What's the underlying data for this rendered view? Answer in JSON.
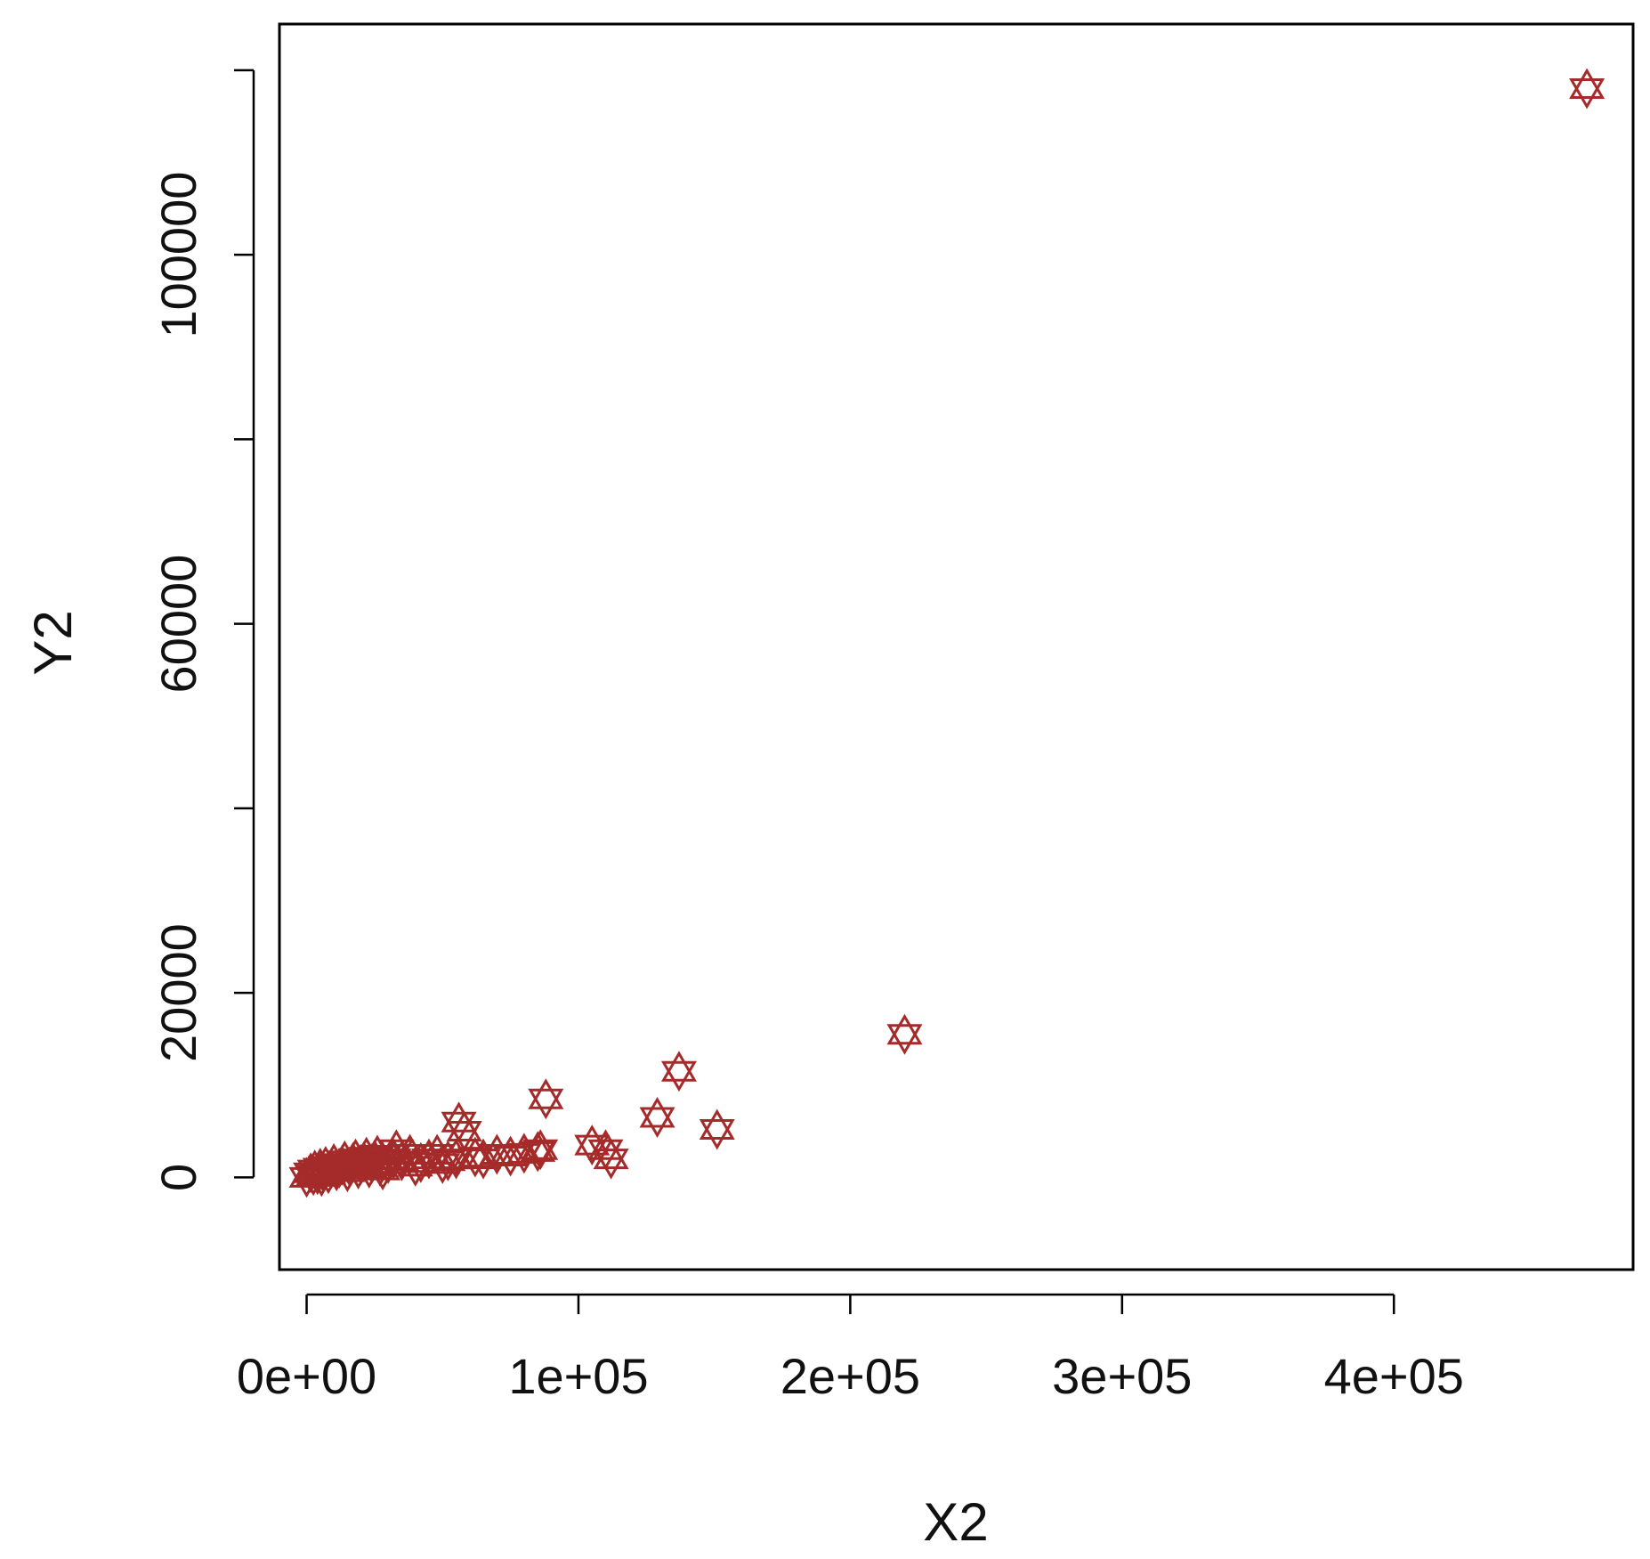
{
  "chart_data": {
    "type": "scatter",
    "title": "",
    "xlabel": "X2",
    "ylabel": "Y2",
    "xlim": [
      -10000,
      488000
    ],
    "ylim": [
      -10000,
      125000
    ],
    "x_ticks": [
      0,
      100000,
      200000,
      300000,
      400000
    ],
    "x_tick_labels": [
      "0e+00",
      "1e+05",
      "2e+05",
      "3e+05",
      "4e+05"
    ],
    "y_ticks": [
      0,
      20000,
      40000,
      60000,
      80000,
      100000,
      120000
    ],
    "y_tick_labels": [
      "0",
      "20000",
      "",
      "60000",
      "",
      "100000",
      ""
    ],
    "grid": false,
    "legend": "none",
    "marker": "star-of-david",
    "marker_color": "#a52a2a",
    "series": [
      {
        "x": [
          0,
          1500,
          2500,
          3000,
          4000,
          5000,
          5500,
          6000,
          7000,
          8000,
          9000,
          10000,
          11000,
          12000,
          13000,
          14000,
          15000,
          16000,
          17000,
          18000,
          19000,
          20000,
          21000,
          22000,
          23000,
          24000,
          25000,
          26000,
          27000,
          28000,
          30000,
          32000,
          33000,
          35000,
          38000,
          40000,
          42000,
          45000,
          48000,
          50000,
          52000,
          55000,
          56000,
          58000,
          62000,
          65000,
          70000,
          75000,
          80000,
          85000,
          88000,
          86000,
          105000,
          110000,
          112000,
          129000,
          137000,
          151000,
          220000,
          471000
        ],
        "y": [
          0,
          500,
          200,
          800,
          300,
          1000,
          100,
          600,
          1200,
          400,
          900,
          1500,
          700,
          1000,
          1300,
          1800,
          600,
          1100,
          1600,
          2000,
          900,
          1400,
          1700,
          2200,
          1000,
          1500,
          1900,
          2400,
          1200,
          800,
          1500,
          2000,
          3000,
          1800,
          2500,
          1200,
          1600,
          2000,
          2500,
          1500,
          1800,
          2000,
          6000,
          5000,
          2200,
          2000,
          2500,
          2300,
          2600,
          2800,
          8500,
          3000,
          3500,
          3000,
          2000,
          6500,
          11500,
          5200,
          15500,
          118000
        ]
      }
    ]
  }
}
